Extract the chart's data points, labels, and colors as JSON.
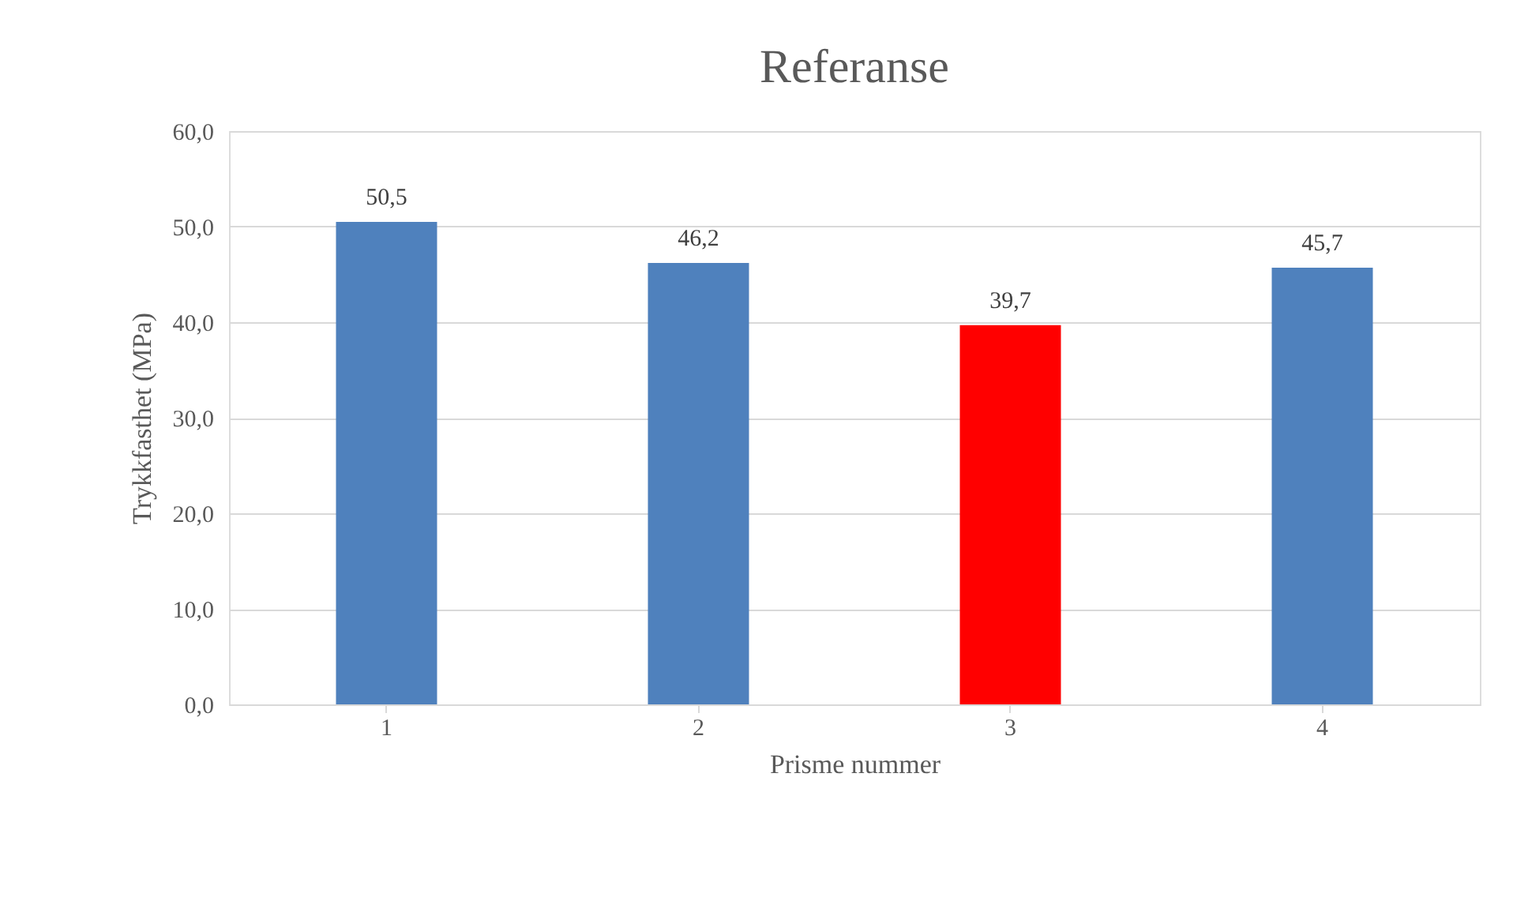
{
  "chart_data": {
    "type": "bar",
    "title": "Referanse",
    "xlabel": "Prisme nummer",
    "ylabel": "Trykkfasthet (MPa)",
    "categories": [
      "1",
      "2",
      "3",
      "4"
    ],
    "values": [
      50.5,
      46.2,
      39.7,
      45.7
    ],
    "colors": [
      "#4f81bd",
      "#4f81bd",
      "#ff0000",
      "#4f81bd"
    ],
    "value_labels": [
      "50,5",
      "46,2",
      "39,7",
      "45,7"
    ],
    "ylim": [
      0,
      60
    ],
    "yticks": [
      {
        "value": 0,
        "label": "0,0"
      },
      {
        "value": 10,
        "label": "10,0"
      },
      {
        "value": 20,
        "label": "20,0"
      },
      {
        "value": 30,
        "label": "30,0"
      },
      {
        "value": 40,
        "label": "40,0"
      },
      {
        "value": 50,
        "label": "50,0"
      },
      {
        "value": 60,
        "label": "60,0"
      }
    ],
    "grid": "y"
  }
}
